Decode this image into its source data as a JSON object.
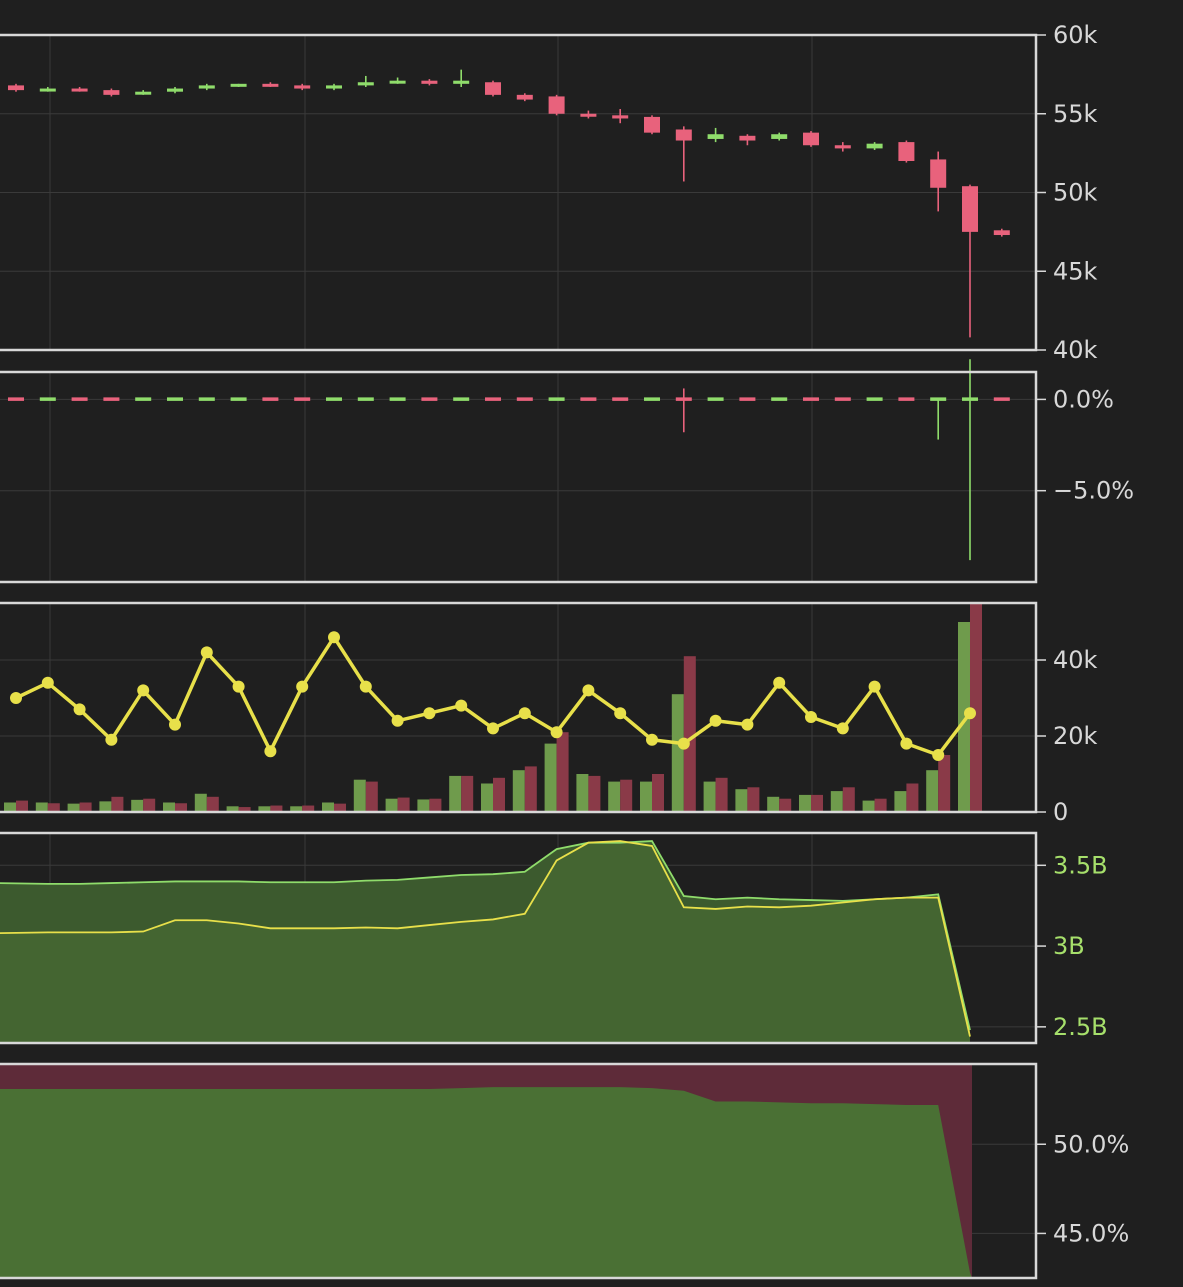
{
  "colors": {
    "background": "#1f1f1f",
    "panel_border": "#d8d8d8",
    "grid": "#3a3a3a",
    "up": "#8fdc6b",
    "down": "#e8627c",
    "up_bar": "#6f9b4c",
    "down_bar": "#8a3a48",
    "line": "#e8e04a",
    "area_green": "#3c5a2e",
    "area_dark_green": "#4a7034",
    "area_red": "#5e2b39",
    "tick_text": "#d8d8d8",
    "tick_text_green": "#a6df6b"
  },
  "chart_data": [
    {
      "id": "price",
      "type": "candlestick",
      "ylim": [
        40000,
        60000
      ],
      "yticks": [
        60000,
        55000,
        50000,
        45000,
        40000
      ],
      "ytick_labels": [
        "60k",
        "55k",
        "50k",
        "45k",
        "40k"
      ],
      "candles": [
        {
          "o": 56800,
          "h": 56900,
          "l": 56400,
          "c": 56500
        },
        {
          "o": 56500,
          "h": 56700,
          "l": 56400,
          "c": 56600
        },
        {
          "o": 56600,
          "h": 56700,
          "l": 56400,
          "c": 56500
        },
        {
          "o": 56500,
          "h": 56600,
          "l": 56100,
          "c": 56200
        },
        {
          "o": 56300,
          "h": 56500,
          "l": 56200,
          "c": 56400
        },
        {
          "o": 56400,
          "h": 56700,
          "l": 56300,
          "c": 56600
        },
        {
          "o": 56600,
          "h": 56900,
          "l": 56500,
          "c": 56800
        },
        {
          "o": 56800,
          "h": 56900,
          "l": 56700,
          "c": 56900
        },
        {
          "o": 56900,
          "h": 57000,
          "l": 56700,
          "c": 56800
        },
        {
          "o": 56800,
          "h": 56900,
          "l": 56500,
          "c": 56600
        },
        {
          "o": 56600,
          "h": 56900,
          "l": 56500,
          "c": 56800
        },
        {
          "o": 56800,
          "h": 57400,
          "l": 56700,
          "c": 57000
        },
        {
          "o": 57000,
          "h": 57300,
          "l": 56900,
          "c": 57100
        },
        {
          "o": 57100,
          "h": 57200,
          "l": 56800,
          "c": 56900
        },
        {
          "o": 56900,
          "h": 57800,
          "l": 56700,
          "c": 57100
        },
        {
          "o": 57000,
          "h": 57100,
          "l": 56100,
          "c": 56200
        },
        {
          "o": 56200,
          "h": 56300,
          "l": 55800,
          "c": 55900
        },
        {
          "o": 56100,
          "h": 56200,
          "l": 54900,
          "c": 55000
        },
        {
          "o": 55000,
          "h": 55200,
          "l": 54700,
          "c": 54900
        },
        {
          "o": 54900,
          "h": 55300,
          "l": 54400,
          "c": 54700
        },
        {
          "o": 54800,
          "h": 54900,
          "l": 53700,
          "c": 53800
        },
        {
          "o": 54000,
          "h": 54200,
          "l": 50700,
          "c": 53300
        },
        {
          "o": 53400,
          "h": 54100,
          "l": 53200,
          "c": 53700
        },
        {
          "o": 53600,
          "h": 53700,
          "l": 53000,
          "c": 53300
        },
        {
          "o": 53400,
          "h": 53800,
          "l": 53300,
          "c": 53700
        },
        {
          "o": 53800,
          "h": 53900,
          "l": 52900,
          "c": 53000
        },
        {
          "o": 53000,
          "h": 53200,
          "l": 52600,
          "c": 52800
        },
        {
          "o": 52800,
          "h": 53200,
          "l": 52700,
          "c": 53100
        },
        {
          "o": 53200,
          "h": 53300,
          "l": 51900,
          "c": 52000
        },
        {
          "o": 52100,
          "h": 52600,
          "l": 48800,
          "c": 50300
        },
        {
          "o": 50400,
          "h": 50500,
          "l": 40800,
          "c": 47500
        },
        {
          "o": 47600,
          "h": 47700,
          "l": 47200,
          "c": 47300
        }
      ]
    },
    {
      "id": "change",
      "type": "bar",
      "ylim": [
        -10.0,
        1.5
      ],
      "yticks": [
        0,
        -5
      ],
      "ytick_labels": [
        "0.0%",
        "−5.0%"
      ],
      "values": [
        -0.1,
        0.1,
        -0.1,
        -0.1,
        0.1,
        0.1,
        0.1,
        0.1,
        -0.1,
        -0.1,
        0.1,
        0.1,
        0.1,
        -0.1,
        0.1,
        -0.1,
        -0.1,
        0.1,
        -0.1,
        -0.1,
        0.1,
        -0.2,
        0.1,
        -0.1,
        0.1,
        -0.1,
        -0.1,
        0.1,
        -0.1,
        0.2,
        0.1,
        -0.2
      ],
      "highs": [
        0.0,
        0.0,
        0.0,
        0.0,
        0.0,
        0.0,
        0.0,
        0.0,
        0.0,
        0.0,
        0.0,
        0.0,
        0.0,
        0.0,
        0.0,
        0.0,
        0.0,
        0.0,
        0.0,
        0.0,
        0.0,
        0.6,
        0.0,
        0.0,
        0.0,
        0.0,
        0.0,
        0.0,
        0.0,
        0.0,
        2.2,
        0.0
      ],
      "lows": [
        0.0,
        0.0,
        0.0,
        0.0,
        0.0,
        0.0,
        0.0,
        0.0,
        0.0,
        0.0,
        0.0,
        0.0,
        0.0,
        0.0,
        0.0,
        0.0,
        0.0,
        0.0,
        0.0,
        0.0,
        0.0,
        -1.8,
        0.0,
        0.0,
        0.0,
        0.0,
        0.0,
        0.0,
        0.0,
        -2.2,
        -8.8,
        0.0
      ]
    },
    {
      "id": "volume",
      "type": "bar+line",
      "ylim": [
        0,
        55000
      ],
      "yticks": [
        0,
        20000,
        40000
      ],
      "ytick_labels": [
        "0",
        "20k",
        "40k"
      ],
      "buy_volume": [
        2500,
        2500,
        2200,
        2800,
        3200,
        2500,
        4800,
        1500,
        1500,
        1500,
        2500,
        8500,
        3500,
        3300,
        9500,
        7500,
        11000,
        18000,
        10000,
        8000,
        8000,
        31000,
        8000,
        6000,
        4000,
        4500,
        5500,
        3000,
        5500,
        11000,
        50000,
        0
      ],
      "sell_volume": [
        3000,
        2300,
        2500,
        4000,
        3500,
        2300,
        4000,
        1300,
        1700,
        1700,
        2200,
        8000,
        3800,
        3500,
        9500,
        9000,
        12000,
        21000,
        9500,
        8500,
        10000,
        41000,
        9000,
        6500,
        3500,
        4500,
        6500,
        3500,
        7500,
        15000,
        55000,
        0
      ],
      "line": [
        30000,
        34000,
        27000,
        19000,
        32000,
        23000,
        42000,
        33000,
        16000,
        33000,
        46000,
        33000,
        24000,
        26000,
        28000,
        22000,
        26000,
        21000,
        32000,
        26000,
        19000,
        18000,
        24000,
        23000,
        34000,
        25000,
        22000,
        33000,
        18000,
        15000,
        26000
      ]
    },
    {
      "id": "liquidity",
      "type": "area",
      "ylim": [
        2400000000,
        3700000000
      ],
      "yticks": [
        3500000000,
        3000000000,
        2500000000
      ],
      "ytick_labels": [
        "3.5B",
        "3B",
        "2.5B"
      ],
      "series_a": [
        3390000000,
        3385000000,
        3385000000,
        3390000000,
        3395000000,
        3400000000,
        3400000000,
        3400000000,
        3395000000,
        3395000000,
        3395000000,
        3405000000,
        3410000000,
        3425000000,
        3440000000,
        3445000000,
        3460000000,
        3600000000,
        3640000000,
        3640000000,
        3650000000,
        3310000000,
        3290000000,
        3300000000,
        3290000000,
        3285000000,
        3280000000,
        3290000000,
        3300000000,
        3320000000,
        2480000000
      ],
      "series_b": [
        3080000000,
        3085000000,
        3085000000,
        3085000000,
        3090000000,
        3160000000,
        3160000000,
        3140000000,
        3110000000,
        3110000000,
        3110000000,
        3115000000,
        3110000000,
        3130000000,
        3150000000,
        3165000000,
        3200000000,
        3530000000,
        3640000000,
        3650000000,
        3620000000,
        3240000000,
        3230000000,
        3245000000,
        3240000000,
        3250000000,
        3270000000,
        3290000000,
        3300000000,
        3300000000,
        2440000000
      ]
    },
    {
      "id": "ratio",
      "type": "area",
      "ylim": [
        42.5,
        54.5
      ],
      "yticks": [
        50,
        45
      ],
      "ytick_labels": [
        "50.0%",
        "45.0%"
      ],
      "values": [
        53.1,
        53.1,
        53.1,
        53.1,
        53.1,
        53.1,
        53.1,
        53.1,
        53.1,
        53.1,
        53.1,
        53.1,
        53.1,
        53.1,
        53.15,
        53.2,
        53.2,
        53.2,
        53.2,
        53.2,
        53.15,
        53.0,
        52.4,
        52.4,
        52.35,
        52.3,
        52.3,
        52.25,
        52.2,
        52.2,
        42.8
      ]
    }
  ]
}
